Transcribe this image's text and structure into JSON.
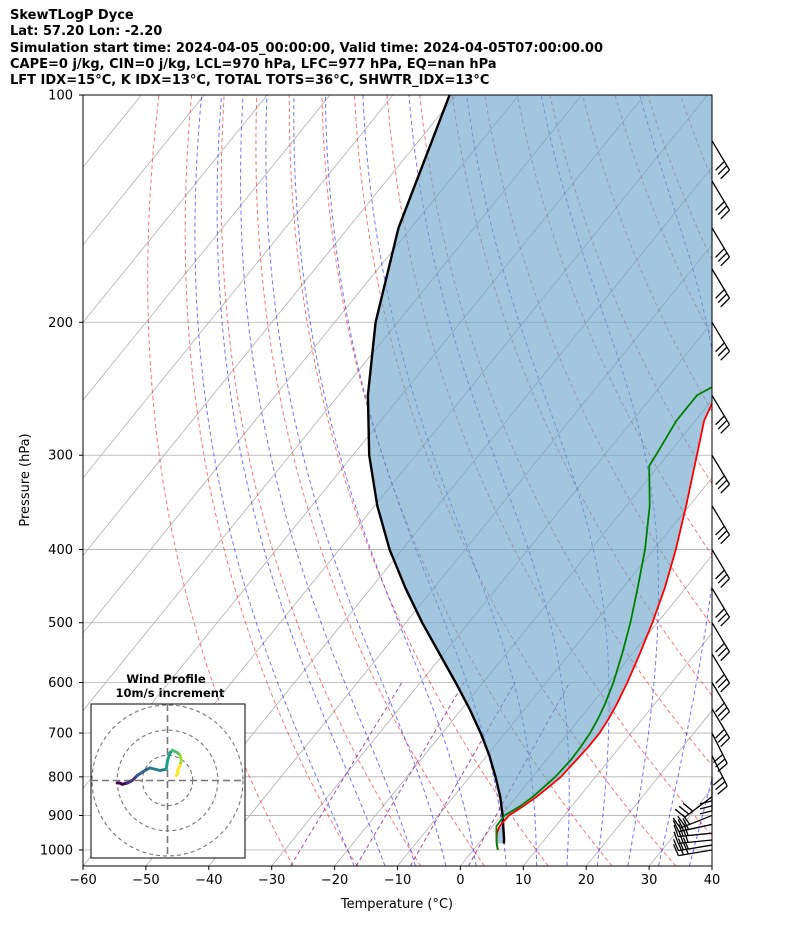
{
  "header": {
    "line1": "SkewTLogP Dyce",
    "line2": "Lat: 57.20   Lon: -2.20",
    "line3": "Simulation start time: 2024-04-05_00:00:00, Valid time: 2024-04-05T07:00:00.00",
    "line4": "CAPE=0 j/kg, CIN=0 j/kg, LCL=970 hPa, LFC=977 hPa, EQ=nan hPa",
    "line5": "LFT IDX=15$^\\circ$C, K IDX=13$^\\circ$C, TOTAL TOTS=36$^\\circ$C, SHWTR_IDX=13$^\\circ$C"
  },
  "chart_data": {
    "type": "line",
    "subtype": "skew-T log-P diagram",
    "xlabel": "Temperature ($^\\circ$C)",
    "ylabel": "Pressure (hPa)",
    "xlim": [
      -60,
      40
    ],
    "ylim": [
      1050,
      100
    ],
    "x_ticks": [
      -60,
      -50,
      -40,
      -30,
      -20,
      -10,
      0,
      10,
      20,
      30,
      40
    ],
    "x_tick_labels": [
      "−60",
      "−50",
      "−40",
      "−30",
      "−20",
      "−10",
      "0",
      "10",
      "20",
      "30",
      "40"
    ],
    "y_ticks": [
      100,
      200,
      300,
      400,
      500,
      600,
      700,
      800,
      900,
      1000
    ],
    "y_tick_labels": [
      "100",
      "200",
      "300",
      "400",
      "500",
      "600",
      "700",
      "800",
      "900",
      "1000"
    ],
    "y_scale": "log",
    "grid": true,
    "series": [
      {
        "role": "temperature",
        "color": "#ff0000",
        "points": [
          [
            1000,
            3.9
          ],
          [
            985,
            3.1
          ],
          [
            970,
            2.4
          ],
          [
            950,
            1.6
          ],
          [
            930,
            1.1
          ],
          [
            900,
            1.2
          ],
          [
            875,
            2.3
          ],
          [
            850,
            3.2
          ],
          [
            820,
            4.0
          ],
          [
            800,
            4.5
          ],
          [
            760,
            4.8
          ],
          [
            730,
            5.0
          ],
          [
            700,
            5.0
          ],
          [
            670,
            4.6
          ],
          [
            640,
            4.0
          ],
          [
            600,
            2.9
          ],
          [
            550,
            1.2
          ],
          [
            500,
            -0.8
          ],
          [
            450,
            -3.3
          ],
          [
            400,
            -6.5
          ],
          [
            350,
            -10.5
          ],
          [
            300,
            -15.3
          ],
          [
            270,
            -18.6
          ],
          [
            250,
            -20.0
          ],
          [
            238,
            -19.5
          ],
          [
            225,
            -12.5
          ],
          [
            200,
            -3.0
          ],
          [
            185,
            -1.8
          ],
          [
            160,
            -1.3
          ],
          [
            140,
            -0.8
          ],
          [
            120,
            2.0
          ],
          [
            100,
            6.0
          ]
        ]
      },
      {
        "role": "dewpoint",
        "color": "#008000",
        "points": [
          [
            1000,
            3.9
          ],
          [
            985,
            3.1
          ],
          [
            970,
            2.4
          ],
          [
            950,
            1.5
          ],
          [
            930,
            0.6
          ],
          [
            900,
            0.5
          ],
          [
            875,
            1.8
          ],
          [
            850,
            2.6
          ],
          [
            820,
            3.2
          ],
          [
            800,
            3.6
          ],
          [
            760,
            3.9
          ],
          [
            730,
            3.8
          ],
          [
            700,
            3.5
          ],
          [
            670,
            2.9
          ],
          [
            640,
            2.1
          ],
          [
            600,
            0.7
          ],
          [
            550,
            -1.6
          ],
          [
            500,
            -4.3
          ],
          [
            450,
            -7.6
          ],
          [
            400,
            -11.4
          ],
          [
            350,
            -16.3
          ],
          [
            310,
            -21.5
          ],
          [
            295,
            -22.0
          ],
          [
            270,
            -23.0
          ],
          [
            250,
            -23.0
          ],
          [
            235,
            -19.8
          ],
          [
            215,
            -20.0
          ],
          [
            200,
            -22.6
          ],
          [
            185,
            -30.0
          ],
          [
            150,
            -24.0
          ],
          [
            120,
            -16.0
          ],
          [
            100,
            -8.0
          ]
        ]
      },
      {
        "role": "parcel",
        "color": "#000000",
        "points": [
          [
            980,
            4.0
          ],
          [
            970,
            3.6
          ],
          [
            900,
            0.2
          ],
          [
            850,
            -2.6
          ],
          [
            800,
            -5.9
          ],
          [
            750,
            -9.6
          ],
          [
            700,
            -13.9
          ],
          [
            650,
            -18.8
          ],
          [
            600,
            -24.4
          ],
          [
            550,
            -30.6
          ],
          [
            500,
            -37.4
          ],
          [
            450,
            -44.5
          ],
          [
            400,
            -52.0
          ],
          [
            350,
            -59.6
          ],
          [
            300,
            -67.4
          ],
          [
            250,
            -75.3
          ],
          [
            200,
            -83.5
          ],
          [
            150,
            -92.0
          ],
          [
            100,
            -101.0
          ]
        ]
      }
    ],
    "cape_cin_shading": "light blue fill between parcel and temperature",
    "reference_lines": [
      "dry adiabats (red dashed)",
      "moist adiabats (blue dashed)",
      "mixing ratio lines (purple dashed)",
      "isotherms (grey)"
    ],
    "wind_barbs": [
      {
        "p": 1000,
        "u": 30,
        "v": 5
      },
      {
        "p": 985,
        "u": 30,
        "v": 5
      },
      {
        "p": 970,
        "u": 30,
        "v": 3
      },
      {
        "p": 950,
        "u": 30,
        "v": 3
      },
      {
        "p": 925,
        "u": 28,
        "v": 6
      },
      {
        "p": 900,
        "u": 25,
        "v": 10
      },
      {
        "p": 850,
        "u": 20,
        "v": 15
      },
      {
        "p": 800,
        "u": 0,
        "v": 30
      },
      {
        "p": 750,
        "u": -15,
        "v": 30
      },
      {
        "p": 700,
        "u": -15,
        "v": 30
      },
      {
        "p": 650,
        "u": -18,
        "v": 30
      },
      {
        "p": 600,
        "u": -18,
        "v": 30
      },
      {
        "p": 550,
        "u": -18,
        "v": 30
      },
      {
        "p": 500,
        "u": -18,
        "v": 30
      },
      {
        "p": 450,
        "u": -18,
        "v": 30
      },
      {
        "p": 400,
        "u": -18,
        "v": 30
      },
      {
        "p": 350,
        "u": -18,
        "v": 30
      },
      {
        "p": 300,
        "u": -18,
        "v": 30
      },
      {
        "p": 250,
        "u": -18,
        "v": 30
      },
      {
        "p": 200,
        "u": -18,
        "v": 30
      },
      {
        "p": 170,
        "u": -18,
        "v": 30
      },
      {
        "p": 150,
        "u": -18,
        "v": 30
      },
      {
        "p": 130,
        "u": -18,
        "v": 30
      },
      {
        "p": 115,
        "u": -18,
        "v": 30
      }
    ],
    "hodograph": {
      "title": "Wind Profile",
      "subtitle": "10m/s increment",
      "points_uv": [
        [
          -20,
          -1
        ],
        [
          -19,
          -1
        ],
        [
          -18,
          -1.5
        ],
        [
          -16,
          -1
        ],
        [
          -14,
          0
        ],
        [
          -12,
          2
        ],
        [
          -9,
          4
        ],
        [
          -7,
          5
        ],
        [
          -3,
          4
        ],
        [
          -0.5,
          4.5
        ],
        [
          0,
          8
        ],
        [
          1,
          11
        ],
        [
          2,
          12
        ],
        [
          4,
          11
        ],
        [
          5,
          10
        ],
        [
          5.5,
          8
        ],
        [
          5,
          6
        ],
        [
          4,
          4
        ],
        [
          4,
          2.5
        ],
        [
          3.5,
          2
        ]
      ]
    }
  }
}
